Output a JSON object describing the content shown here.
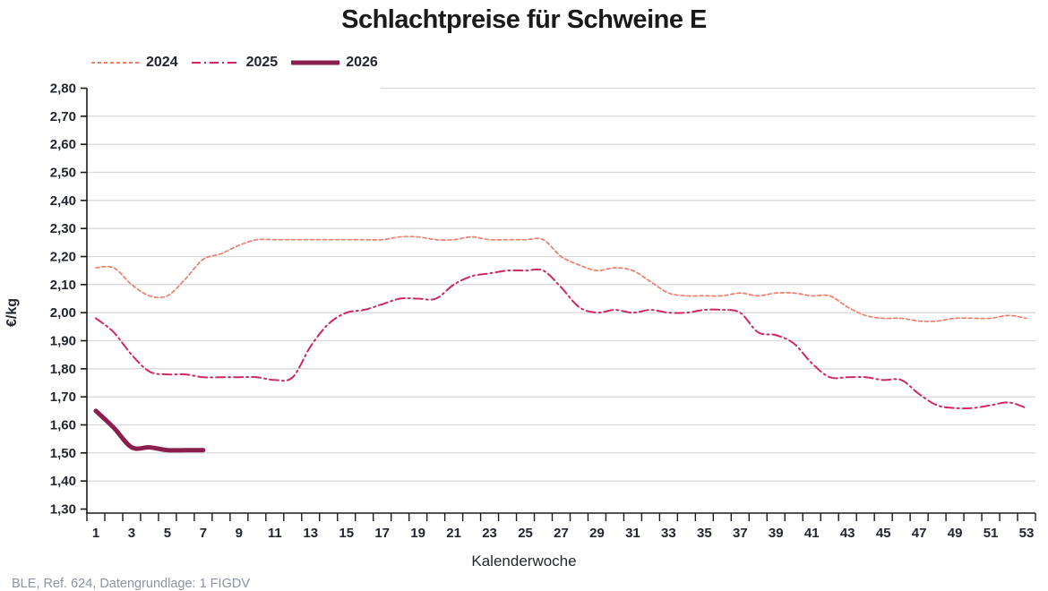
{
  "title": "Schlachtpreise für Schweine E",
  "footer": "BLE, Ref. 624, Datengrundlage: 1 FIGDV",
  "chart_data": {
    "type": "line",
    "title": "Schlachtpreise für Schweine E",
    "xlabel": "Kalenderwoche",
    "ylabel": "€/kg",
    "ylim": [
      1.3,
      2.8
    ],
    "ytick_step": 0.1,
    "ytick_labels": [
      "1,30",
      "1,40",
      "1,50",
      "1,60",
      "1,70",
      "1,80",
      "1,90",
      "2,00",
      "2,10",
      "2,20",
      "2,30",
      "2,40",
      "2,50",
      "2,60",
      "2,70",
      "2,80"
    ],
    "xtick_labels": [
      "1",
      "3",
      "5",
      "7",
      "9",
      "11",
      "13",
      "15",
      "17",
      "19",
      "21",
      "23",
      "25",
      "27",
      "29",
      "31",
      "33",
      "35",
      "37",
      "39",
      "41",
      "43",
      "45",
      "47",
      "49",
      "51",
      "53"
    ],
    "x_range": [
      1,
      53
    ],
    "grid": "horizontal",
    "legend_position": "top-left",
    "series": [
      {
        "name": "2024",
        "color": "#f07d6a",
        "line_style": "dashed",
        "line_width": 1.7,
        "start_week": 1,
        "values": [
          2.16,
          2.16,
          2.1,
          2.06,
          2.06,
          2.12,
          2.19,
          2.21,
          2.24,
          2.26,
          2.26,
          2.26,
          2.26,
          2.26,
          2.26,
          2.26,
          2.26,
          2.27,
          2.27,
          2.26,
          2.26,
          2.27,
          2.26,
          2.26,
          2.26,
          2.26,
          2.2,
          2.17,
          2.15,
          2.16,
          2.15,
          2.11,
          2.07,
          2.06,
          2.06,
          2.06,
          2.07,
          2.06,
          2.07,
          2.07,
          2.06,
          2.06,
          2.02,
          1.99,
          1.98,
          1.98,
          1.97,
          1.97,
          1.98,
          1.98,
          1.98,
          1.99,
          1.98
        ]
      },
      {
        "name": "2025",
        "color": "#ce2a5f",
        "line_style": "dashdot",
        "line_width": 2,
        "start_week": 1,
        "values": [
          1.98,
          1.93,
          1.85,
          1.79,
          1.78,
          1.78,
          1.77,
          1.77,
          1.77,
          1.77,
          1.76,
          1.77,
          1.88,
          1.96,
          2.0,
          2.01,
          2.03,
          2.05,
          2.05,
          2.05,
          2.1,
          2.13,
          2.14,
          2.15,
          2.15,
          2.15,
          2.09,
          2.02,
          2.0,
          2.01,
          2.0,
          2.01,
          2.0,
          2.0,
          2.01,
          2.01,
          2.0,
          1.93,
          1.92,
          1.89,
          1.82,
          1.77,
          1.77,
          1.77,
          1.76,
          1.76,
          1.71,
          1.67,
          1.66,
          1.66,
          1.67,
          1.68,
          1.66
        ]
      },
      {
        "name": "2026",
        "color": "#8a1e4f",
        "line_style": "solid",
        "line_width": 5,
        "start_week": 1,
        "values": [
          1.65,
          1.59,
          1.52,
          1.52,
          1.51,
          1.51,
          1.51
        ]
      }
    ]
  }
}
